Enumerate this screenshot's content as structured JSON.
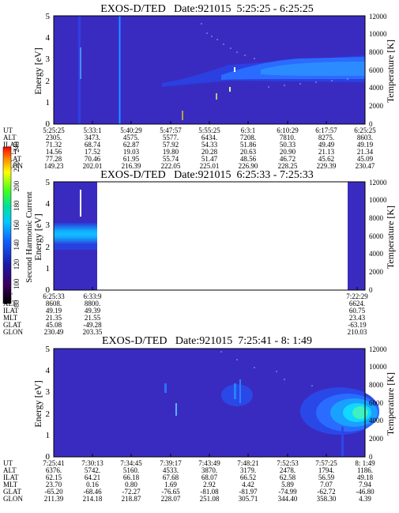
{
  "panels": [
    {
      "title": "EXOS-D/TED   Date:921015  5:25:25 - 6:25:25",
      "ylabel_left": "Energy [eV]",
      "ylabel_right": "Temperature [K]",
      "yticks_left": [
        "0",
        "1",
        "2",
        "3",
        "4",
        "5"
      ],
      "yticks_right": [
        "0",
        "2000",
        "4000",
        "6000",
        "8000",
        "10000",
        "12000"
      ],
      "row_labels": [
        "UT",
        "ALT",
        "ILAT",
        "MLT",
        "GLAT",
        "GLON"
      ],
      "columns": [
        [
          "5:25:25",
          "2305.",
          "71.32",
          "14.56",
          "77.28",
          "149.23"
        ],
        [
          "5:33:1",
          "3473.",
          "68.74",
          "17.52",
          "70.46",
          "202.01"
        ],
        [
          "5:40:29",
          "4575.",
          "62.87",
          "19.03",
          "61.95",
          "216.39"
        ],
        [
          "5:47:57",
          "5577.",
          "57.92",
          "19.80",
          "55.74",
          "222.05"
        ],
        [
          "5:55:25",
          "6434.",
          "54.33",
          "20.28",
          "51.47",
          "225.01"
        ],
        [
          "6:3:1",
          "7208.",
          "51.86",
          "20.63",
          "48.56",
          "226.90"
        ],
        [
          "6:10:29",
          "7810.",
          "50.33",
          "20.90",
          "46.72",
          "228.25"
        ],
        [
          "6:17:57",
          "8275.",
          "49.49",
          "21.13",
          "45.62",
          "229.39"
        ],
        [
          "6:25:25",
          "8603.",
          "49.19",
          "21.34",
          "45.09",
          "230.47"
        ]
      ]
    },
    {
      "title": "EXOS-D/TED   Date:921015  6:25:33 - 7:25:33",
      "ylabel_left": "Energy [eV]",
      "ylabel_right": "Temperature [K]",
      "yticks_left": [
        "0",
        "1",
        "2",
        "3",
        "4",
        "5"
      ],
      "yticks_right": [
        "0",
        "2000",
        "4000",
        "6000",
        "8000",
        "10000",
        "12000"
      ],
      "row_labels": [
        "UT",
        "ALT",
        "ILAT",
        "MLT",
        "GLAT",
        "GLON"
      ],
      "columns": [
        [
          "6:25:33",
          "8608.",
          "49.19",
          "21.35",
          "45.08",
          "230.49"
        ],
        [
          "6:33:9",
          "8800.",
          "49.39",
          "21.55",
          "-49.28",
          "203.35"
        ],
        [
          "7:22:29",
          "6624.",
          "60.75",
          "23.43",
          "-63.19",
          "210.03"
        ]
      ]
    },
    {
      "title": "EXOS-D/TED   Date:921015  7:25:41 - 8: 1:49",
      "ylabel_left": "Energy [eV]",
      "ylabel_right": "Temperature [K]",
      "yticks_left": [
        "0",
        "1",
        "2",
        "3",
        "4",
        "5"
      ],
      "yticks_right": [
        "0",
        "2000",
        "4000",
        "6000",
        "8000",
        "10000",
        "12000"
      ],
      "row_labels": [
        "UT",
        "ALT",
        "ILAT",
        "MLT",
        "GLAT",
        "GLON"
      ],
      "columns": [
        [
          "7:25:41",
          "6376.",
          "62.15",
          "23.70",
          "-65.20",
          "211.39"
        ],
        [
          "7:30:13",
          "5742.",
          "64.21",
          "0.16",
          "-68.46",
          "214.18"
        ],
        [
          "7:34:45",
          "5160.",
          "66.18",
          "0.80",
          "-72.27",
          "218.87"
        ],
        [
          "7:39:17",
          "4533.",
          "67.68",
          "1.69",
          "-76.65",
          "228.07"
        ],
        [
          "7:43:49",
          "3870.",
          "68.07",
          "2.92",
          "-81.08",
          "251.08"
        ],
        [
          "7:48:21",
          "3179.",
          "66.52",
          "4.42",
          "-81.97",
          "305.71"
        ],
        [
          "7:52:53",
          "2478.",
          "62.58",
          "5.89",
          "-74.99",
          "344.40"
        ],
        [
          "7:57:25",
          "1794.",
          "56.59",
          "7.07",
          "-62.72",
          "358.30"
        ],
        [
          "8: 1:49",
          "1186.",
          "49.18",
          "7.94",
          "-46.80",
          "4.39"
        ]
      ]
    }
  ],
  "colorbar": {
    "label": "Second Harmonic Current",
    "ticks": [
      "80",
      "100",
      "120",
      "140",
      "160",
      "180",
      "200",
      "220",
      "240"
    ]
  },
  "chart_data": [
    {
      "type": "heatmap",
      "title": "EXOS-D/TED   Date:921015  5:25:25 - 6:25:25",
      "xlabel": "UT",
      "ylabel": "Energy [eV]",
      "ylabel_right": "Temperature [K]",
      "ylim": [
        0,
        5
      ],
      "ylim_right": [
        0,
        12000
      ],
      "x": [
        "5:25:25",
        "5:33:1",
        "5:40:29",
        "5:47:57",
        "5:55:25",
        "6:3:1",
        "6:10:29",
        "6:17:57",
        "6:25:25"
      ],
      "zlabel": "Second Harmonic Current",
      "zlim": [
        80,
        240
      ],
      "features": [
        {
          "description_ut": "5:55:25 - 6:25:25",
          "energy_center_eV": 2.7,
          "value_level": 150
        },
        {
          "description_ut": "5:40:29",
          "energy_range_eV": [
            0,
            5
          ],
          "value_level": 150
        }
      ]
    },
    {
      "type": "heatmap",
      "title": "EXOS-D/TED   Date:921015  6:25:33 - 7:25:33",
      "xlabel": "UT",
      "ylabel": "Energy [eV]",
      "ylabel_right": "Temperature [K]",
      "ylim": [
        0,
        5
      ],
      "ylim_right": [
        0,
        12000
      ],
      "x": [
        "6:25:33",
        "6:33:9",
        "7:22:29"
      ],
      "zlabel": "Second Harmonic Current",
      "zlim": [
        80,
        240
      ],
      "features": [
        {
          "description_ut": "6:25:33 - 6:33:9",
          "energy_center_eV": 2.5,
          "value_level": 160
        }
      ]
    },
    {
      "type": "heatmap",
      "title": "EXOS-D/TED   Date:921015  7:25:41 - 8: 1:49",
      "xlabel": "UT",
      "ylabel": "Energy [eV]",
      "ylabel_right": "Temperature [K]",
      "ylim": [
        0,
        5
      ],
      "ylim_right": [
        0,
        12000
      ],
      "x": [
        "7:25:41",
        "7:30:13",
        "7:34:45",
        "7:39:17",
        "7:43:49",
        "7:48:21",
        "7:52:53",
        "7:57:25",
        "8: 1:49"
      ],
      "zlabel": "Second Harmonic Current",
      "zlim": [
        80,
        240
      ],
      "features": [
        {
          "description_ut": "7:57:25 - 8: 1:49",
          "energy_center_eV": 1.7,
          "value_level": 165
        }
      ]
    }
  ]
}
